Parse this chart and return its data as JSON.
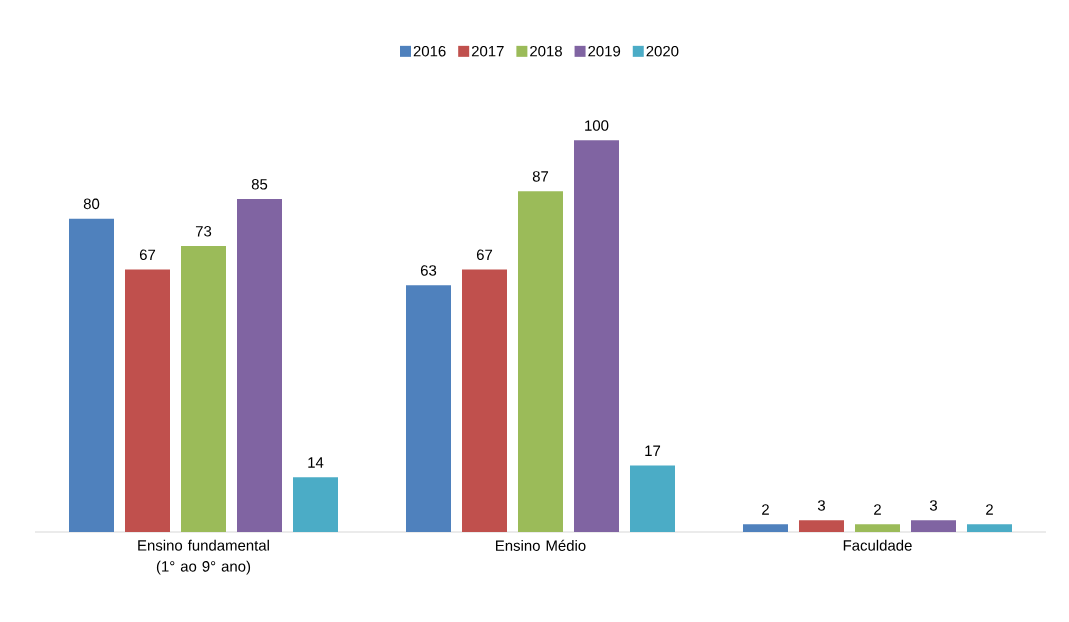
{
  "chart_data": {
    "type": "bar",
    "categories": [
      "Ensino fundamental (1° ao 9° ano)",
      "Ensino Médio",
      "Faculdade"
    ],
    "series": [
      {
        "name": "2016",
        "color": "#4f81bd",
        "values": [
          80,
          63,
          2
        ]
      },
      {
        "name": "2017",
        "color": "#c0504d",
        "values": [
          67,
          67,
          3
        ]
      },
      {
        "name": "2018",
        "color": "#9bbb59",
        "values": [
          73,
          87,
          2
        ]
      },
      {
        "name": "2019",
        "color": "#8064a2",
        "values": [
          85,
          100,
          3
        ]
      },
      {
        "name": "2020",
        "color": "#4bacc6",
        "values": [
          14,
          17,
          2
        ]
      }
    ],
    "data_labels": true,
    "legend": "top"
  }
}
